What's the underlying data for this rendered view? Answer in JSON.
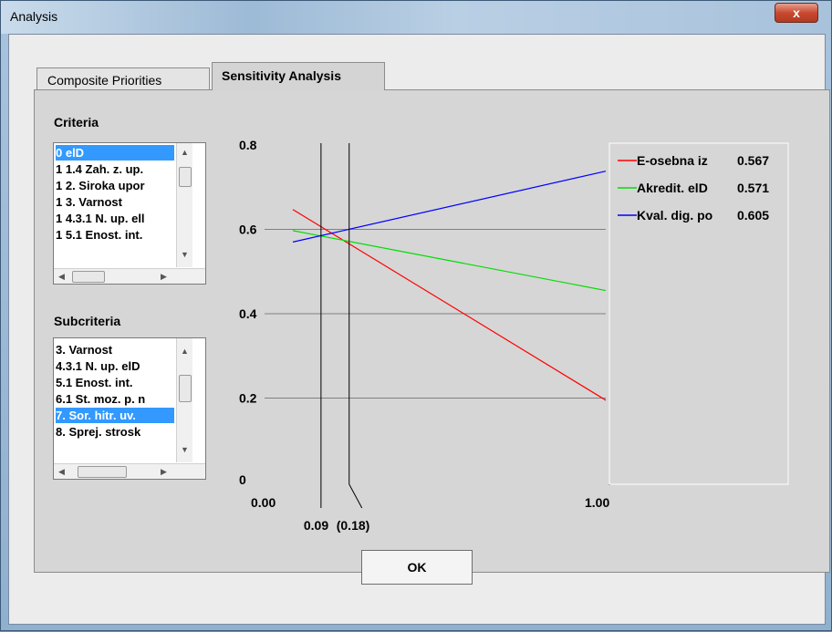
{
  "window": {
    "title": "Analysis",
    "close_label": "x"
  },
  "tabs": [
    {
      "label": "Composite Priorities",
      "active": false
    },
    {
      "label": "Sensitivity Analysis",
      "active": true
    }
  ],
  "criteria": {
    "label": "Criteria",
    "items": [
      {
        "text": "0 elD",
        "selected": true
      },
      {
        "text": "1 1.4 Zah. z. up.",
        "selected": false
      },
      {
        "text": "1 2. Siroka upor",
        "selected": false
      },
      {
        "text": "1 3. Varnost",
        "selected": false
      },
      {
        "text": "1 4.3.1 N. up. ell",
        "selected": false
      },
      {
        "text": "1 5.1 Enost. int.",
        "selected": false
      }
    ]
  },
  "subcriteria": {
    "label": "Subcriteria",
    "items": [
      {
        "text": "3. Varnost",
        "selected": false
      },
      {
        "text": "4.3.1 N. up. elD",
        "selected": false
      },
      {
        "text": "5.1 Enost. int.",
        "selected": false
      },
      {
        "text": "6.1 St. moz. p. n",
        "selected": false
      },
      {
        "text": "7. Sor. hitr. uv.",
        "selected": true
      },
      {
        "text": "8. Sprej. strosk",
        "selected": false
      }
    ]
  },
  "chart_data": {
    "type": "line",
    "xlim": [
      0,
      1
    ],
    "ylim": [
      0,
      0.8
    ],
    "y_ticks": [
      "0.8",
      "0.6",
      "0.4",
      "0.2",
      "0"
    ],
    "x_tick_labels": [
      "0.00",
      "1.00"
    ],
    "markers": [
      {
        "label": "0.09",
        "x": 0.09
      },
      {
        "label": "(0.18)",
        "x": 0.18
      }
    ],
    "series": [
      {
        "name": "E-osebna iz",
        "value_label": "0.567",
        "color": "#ff0000",
        "x": [
          0,
          1
        ],
        "y": [
          0.647,
          0.195
        ]
      },
      {
        "name": "Akredit. elD",
        "value_label": "0.571",
        "color": "#00dd00",
        "x": [
          0,
          1
        ],
        "y": [
          0.597,
          0.455
        ]
      },
      {
        "name": "Kval. dig. po",
        "value_label": "0.605",
        "color": "#0000ff",
        "x": [
          0,
          1
        ],
        "y": [
          0.57,
          0.738
        ]
      }
    ],
    "grid": true,
    "legend_placement": "right"
  },
  "ok_label": "OK"
}
